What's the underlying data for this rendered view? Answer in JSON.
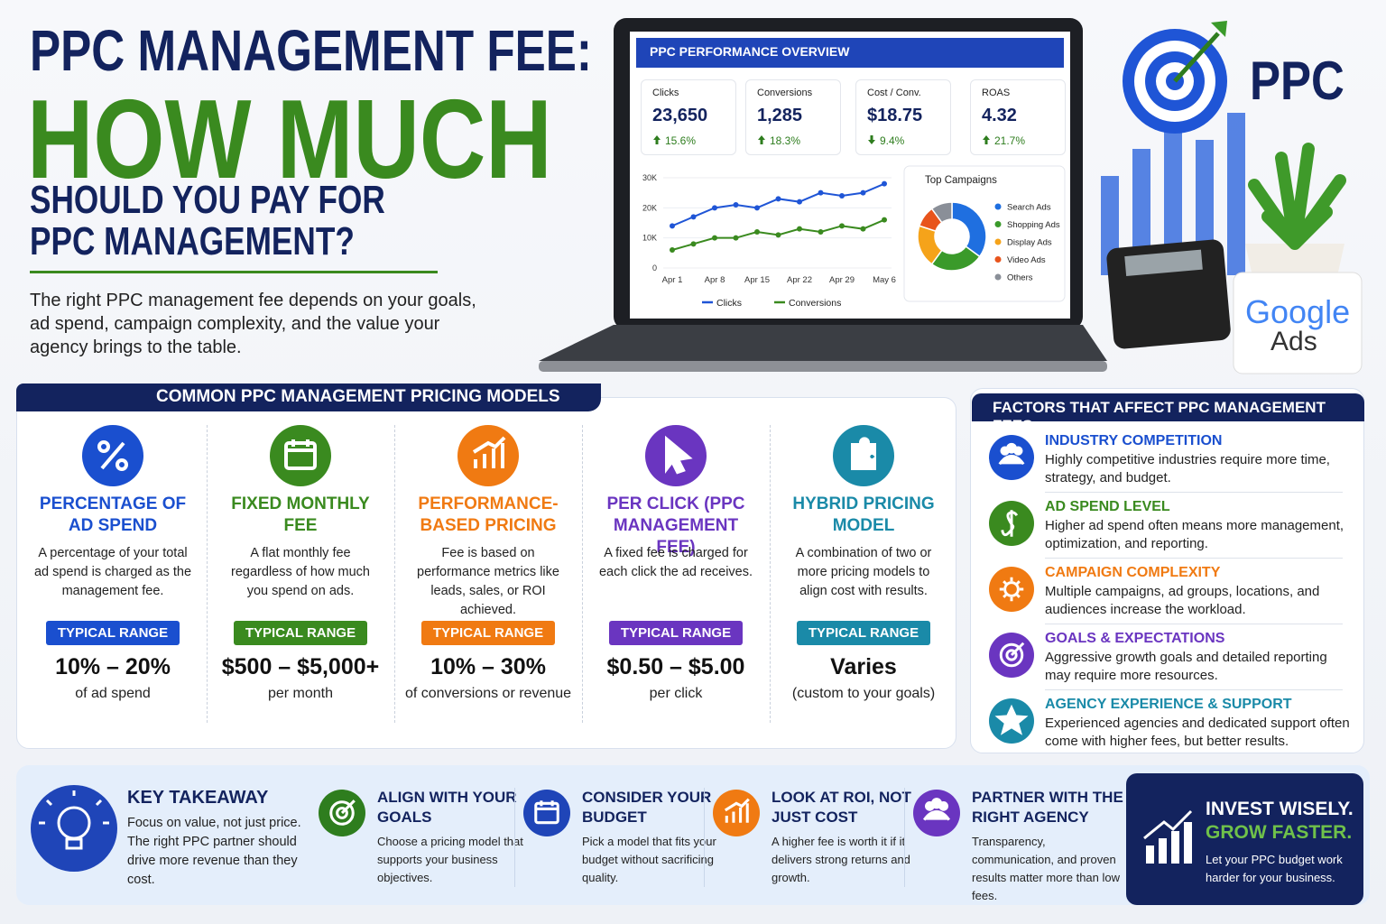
{
  "header": {
    "title_line1": "PPC MANAGEMENT FEE:",
    "title_line2": "HOW MUCH",
    "title_line3": "SHOULD YOU PAY FOR",
    "title_line4": "PPC MANAGEMENT?",
    "intro": "The right PPC management fee depends on your goals, ad spend, campaign complexity, and the value your agency brings to the table."
  },
  "brand": {
    "logo_text": "PPC",
    "google_word": "Google",
    "ads_word": "Ads"
  },
  "dashboard": {
    "title": "PPC PERFORMANCE OVERVIEW",
    "stats": [
      {
        "label": "Clicks",
        "value": "23,650",
        "change": "15.6%",
        "trend": "up"
      },
      {
        "label": "Conversions",
        "value": "1,285",
        "change": "18.3%",
        "trend": "up"
      },
      {
        "label": "Cost / Conv.",
        "value": "$18.75",
        "change": "9.4%",
        "trend": "down"
      },
      {
        "label": "ROAS",
        "value": "4.32",
        "change": "21.7%",
        "trend": "up"
      }
    ]
  },
  "chart_data": [
    {
      "type": "line",
      "categories": [
        "Apr 1",
        null,
        "Apr 8",
        null,
        "Apr 15",
        null,
        "Apr 22",
        null,
        "Apr 29",
        null,
        "May 6"
      ],
      "ylim": [
        0,
        30000
      ],
      "yticks": [
        0,
        {
          "value": 10000,
          "label": "10K"
        },
        {
          "value": 20000,
          "label": "20K"
        },
        {
          "value": 30000,
          "label": "30K"
        }
      ],
      "series": [
        {
          "name": "Clicks",
          "color": "#1f55d6",
          "values": [
            14000,
            17000,
            20000,
            21000,
            20000,
            23000,
            22000,
            25000,
            24000,
            25000,
            28000
          ]
        },
        {
          "name": "Conversions",
          "color": "#3a8a1f",
          "values": [
            6000,
            8000,
            10000,
            10000,
            12000,
            11000,
            13000,
            12000,
            14000,
            13000,
            16000
          ]
        }
      ]
    },
    {
      "type": "pie",
      "title": "Top Campaigns",
      "categories": [
        "Search Ads",
        "Shopping Ads",
        "Display Ads",
        "Video Ads",
        "Others"
      ],
      "values": [
        35,
        25,
        20,
        10,
        10
      ],
      "colors": [
        "#1f6fe0",
        "#3a9a2a",
        "#f5a31a",
        "#e8541c",
        "#8a8f98"
      ]
    }
  ],
  "pricing": {
    "title": "COMMON PPC MANAGEMENT PRICING MODELS",
    "models": [
      {
        "name": "PERCENTAGE OF AD SPEND",
        "description": "A percentage of your total ad spend is charged as the management fee.",
        "badge": "TYPICAL RANGE",
        "range": "10% – 20%",
        "unit": "of ad spend",
        "color": "#1a4fcf"
      },
      {
        "name": "FIXED MONTHLY FEE",
        "description": "A flat monthly fee regardless of how much you spend on ads.",
        "badge": "TYPICAL RANGE",
        "range": "$500 – $5,000+",
        "unit": "per month",
        "color": "#3a8a1f"
      },
      {
        "name": "PERFORMANCE-BASED PRICING",
        "description": "Fee is based on performance metrics like leads, sales, or ROI achieved.",
        "badge": "TYPICAL RANGE",
        "range": "10% – 30%",
        "unit": "of conversions or revenue",
        "color": "#f07a12"
      },
      {
        "name": "PER CLICK (PPC MANAGEMENT FEE)",
        "description": "A fixed fee is charged for each click the ad receives.",
        "badge": "TYPICAL RANGE",
        "range": "$0.50 – $5.00",
        "unit": "per click",
        "color": "#6a35c0"
      },
      {
        "name": "HYBRID PRICING MODEL",
        "description": "A combination of two or more pricing models to align cost with results.",
        "badge": "TYPICAL RANGE",
        "range": "Varies",
        "unit": "(custom to your goals)",
        "color": "#1a8aa8"
      }
    ]
  },
  "factors": {
    "title": "FACTORS THAT AFFECT PPC MANAGEMENT FEES",
    "items": [
      {
        "title": "INDUSTRY COMPETITION",
        "text": "Highly competitive industries require more time, strategy, and budget.",
        "color": "#1a4fcf"
      },
      {
        "title": "AD SPEND LEVEL",
        "text": "Higher ad spend often means more management, optimization, and reporting.",
        "color": "#3a8a1f"
      },
      {
        "title": "CAMPAIGN COMPLEXITY",
        "text": "Multiple campaigns, ad groups, locations, and audiences increase the workload.",
        "color": "#f07a12"
      },
      {
        "title": "GOALS & EXPECTATIONS",
        "text": "Aggressive growth goals and detailed reporting may require more resources.",
        "color": "#6a35c0"
      },
      {
        "title": "AGENCY EXPERIENCE & SUPPORT",
        "text": "Experienced agencies and dedicated support often come with higher fees, but better results.",
        "color": "#1a8aa8"
      }
    ]
  },
  "takeaway": {
    "title": "KEY TAKEAWAY",
    "text": "Focus on value, not just price. The right PPC partner should drive more revenue than they cost."
  },
  "tips": [
    {
      "title": "ALIGN WITH YOUR GOALS",
      "text": "Choose a pricing model that supports your business objectives."
    },
    {
      "title": "CONSIDER YOUR BUDGET",
      "text": "Pick a model that fits your budget without sacrificing quality."
    },
    {
      "title": "LOOK AT ROI, NOT JUST COST",
      "text": "A higher fee is worth it if it delivers strong returns and growth."
    },
    {
      "title": "PARTNER WITH THE RIGHT AGENCY",
      "text": "Transparency, communication, and proven results matter more than low fees."
    }
  ],
  "cta": {
    "line1": "INVEST WISELY.",
    "line2": "GROW FASTER.",
    "text": "Let your PPC budget work harder for your business."
  }
}
